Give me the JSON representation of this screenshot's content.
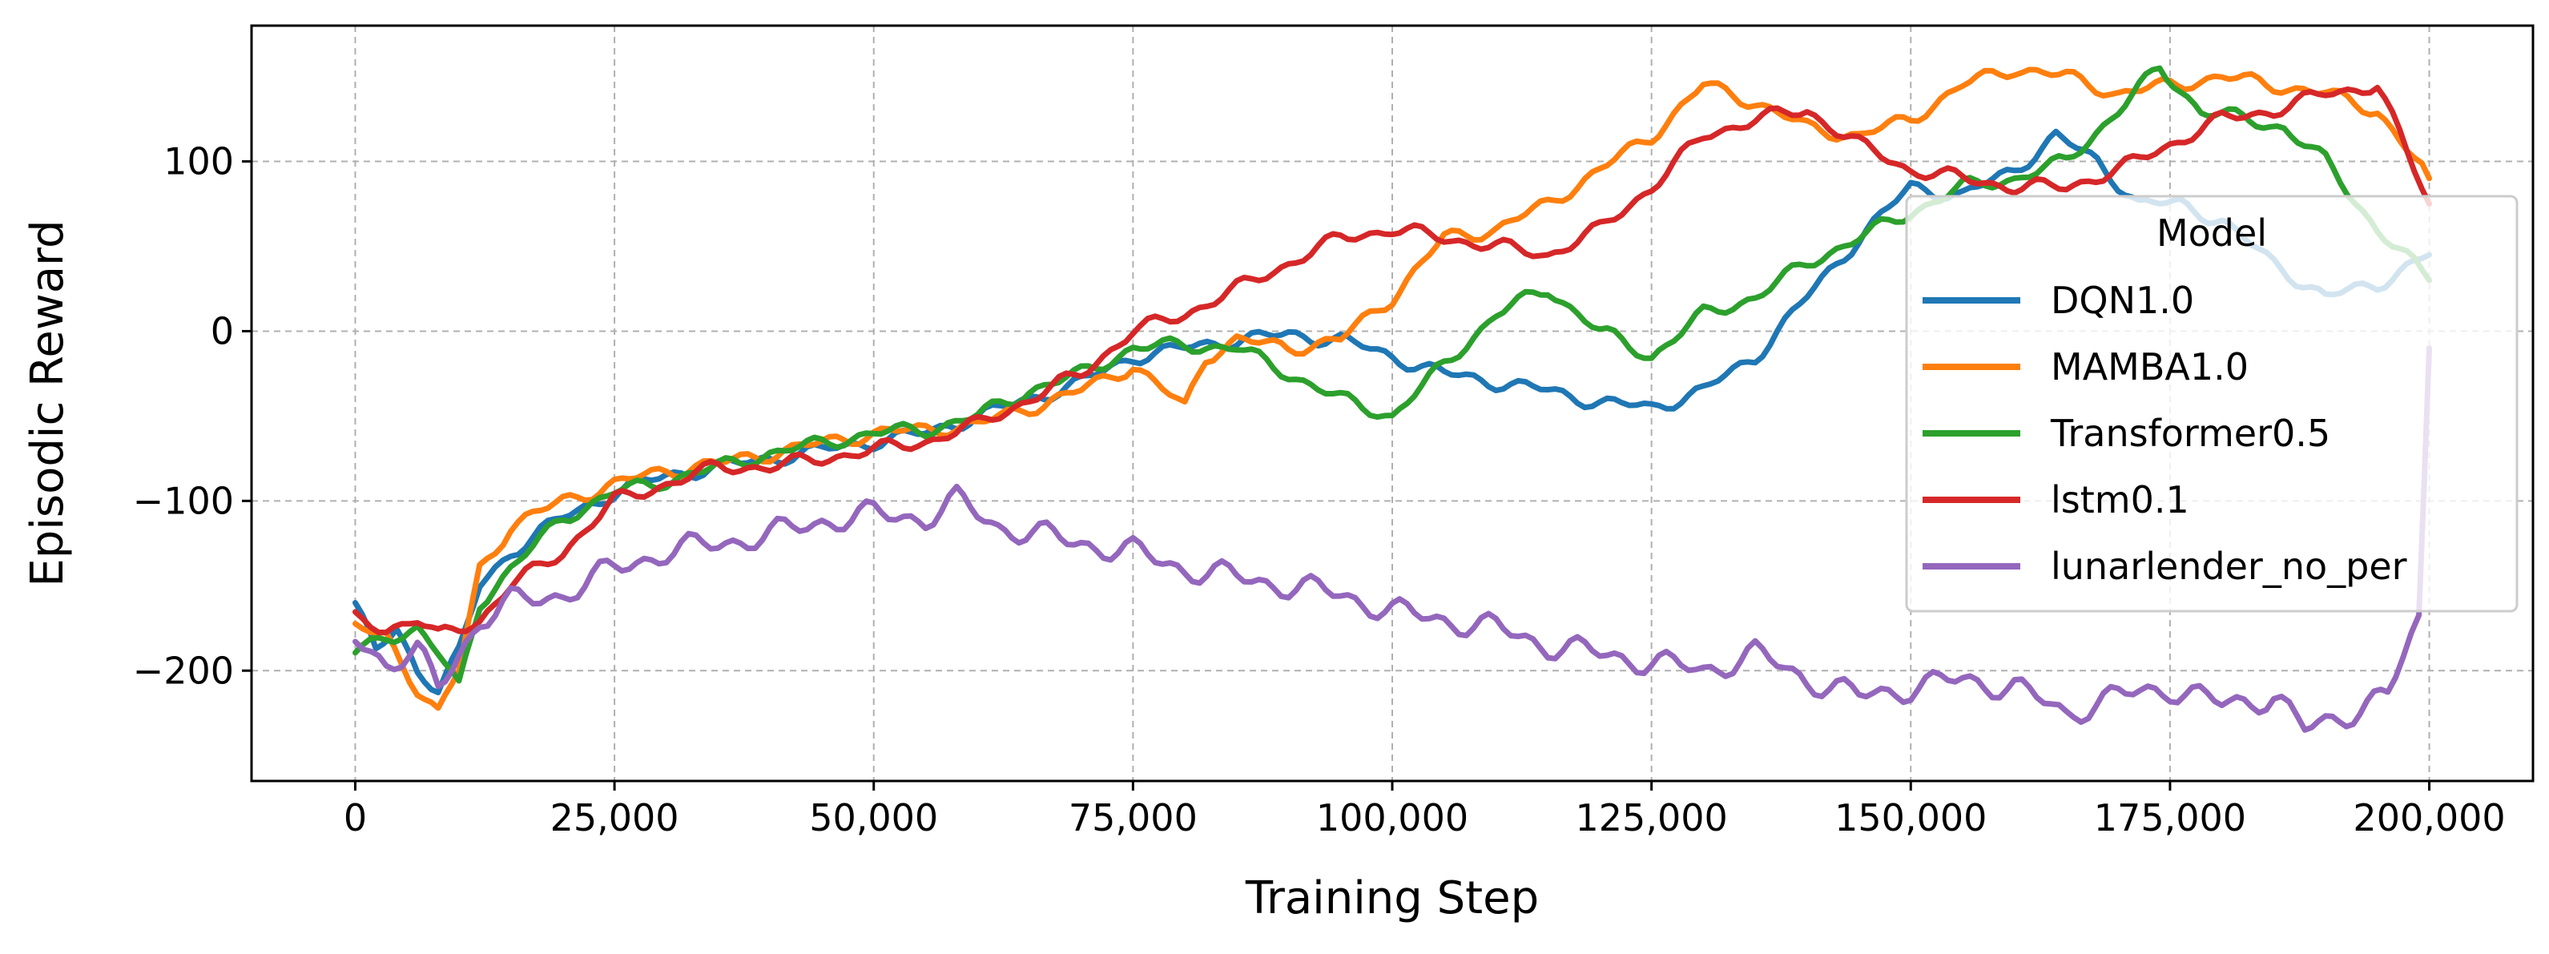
{
  "chart_data": {
    "type": "line",
    "xlabel": "Training Step",
    "ylabel": "Episodic Reward",
    "xlim": [
      -10000,
      210000
    ],
    "ylim": [
      -265,
      180
    ],
    "xticks": [
      0,
      25000,
      50000,
      75000,
      100000,
      125000,
      150000,
      175000,
      200000
    ],
    "xtick_labels": [
      "0",
      "25,000",
      "50,000",
      "75,000",
      "100,000",
      "125,000",
      "150,000",
      "175,000",
      "200,000"
    ],
    "yticks": [
      -200,
      -100,
      0,
      100
    ],
    "ytick_labels": [
      "−200",
      "−100",
      "0",
      "100"
    ],
    "grid": true,
    "legend": {
      "title": "Model",
      "placement": "center-right"
    },
    "series": [
      {
        "name": "DQN1.0",
        "color": "#1f77b4",
        "points": [
          [
            0,
            -160
          ],
          [
            2000,
            -190
          ],
          [
            4000,
            -175
          ],
          [
            6000,
            -200
          ],
          [
            8000,
            -210
          ],
          [
            10000,
            -190
          ],
          [
            12000,
            -150
          ],
          [
            15000,
            -130
          ],
          [
            20000,
            -110
          ],
          [
            25000,
            -95
          ],
          [
            30000,
            -85
          ],
          [
            35000,
            -80
          ],
          [
            40000,
            -75
          ],
          [
            45000,
            -70
          ],
          [
            50000,
            -65
          ],
          [
            55000,
            -60
          ],
          [
            60000,
            -50
          ],
          [
            65000,
            -40
          ],
          [
            70000,
            -30
          ],
          [
            75000,
            -15
          ],
          [
            80000,
            -10
          ],
          [
            85000,
            -5
          ],
          [
            90000,
            -2
          ],
          [
            95000,
            -5
          ],
          [
            100000,
            -15
          ],
          [
            105000,
            -25
          ],
          [
            110000,
            -30
          ],
          [
            115000,
            -35
          ],
          [
            120000,
            -42
          ],
          [
            125000,
            -45
          ],
          [
            130000,
            -35
          ],
          [
            135000,
            -15
          ],
          [
            140000,
            20
          ],
          [
            145000,
            55
          ],
          [
            150000,
            85
          ],
          [
            155000,
            80
          ],
          [
            160000,
            95
          ],
          [
            164000,
            115
          ],
          [
            168000,
            100
          ],
          [
            172000,
            75
          ],
          [
            176000,
            75
          ],
          [
            180000,
            65
          ],
          [
            185000,
            40
          ],
          [
            190000,
            20
          ],
          [
            195000,
            28
          ],
          [
            200000,
            45
          ]
        ]
      },
      {
        "name": "MAMBA1.0",
        "color": "#ff7f0e",
        "points": [
          [
            0,
            -175
          ],
          [
            3000,
            -180
          ],
          [
            6000,
            -210
          ],
          [
            8000,
            -225
          ],
          [
            10000,
            -200
          ],
          [
            12000,
            -140
          ],
          [
            15000,
            -115
          ],
          [
            20000,
            -100
          ],
          [
            25000,
            -90
          ],
          [
            30000,
            -82
          ],
          [
            35000,
            -78
          ],
          [
            40000,
            -72
          ],
          [
            45000,
            -66
          ],
          [
            50000,
            -60
          ],
          [
            55000,
            -58
          ],
          [
            60000,
            -55
          ],
          [
            65000,
            -45
          ],
          [
            70000,
            -35
          ],
          [
            75000,
            -20
          ],
          [
            80000,
            -45
          ],
          [
            82000,
            -15
          ],
          [
            85000,
            -5
          ],
          [
            90000,
            -10
          ],
          [
            95000,
            -5
          ],
          [
            100000,
            20
          ],
          [
            105000,
            55
          ],
          [
            110000,
            60
          ],
          [
            115000,
            75
          ],
          [
            120000,
            95
          ],
          [
            125000,
            115
          ],
          [
            130000,
            145
          ],
          [
            135000,
            135
          ],
          [
            140000,
            120
          ],
          [
            145000,
            115
          ],
          [
            150000,
            125
          ],
          [
            155000,
            145
          ],
          [
            160000,
            155
          ],
          [
            165000,
            150
          ],
          [
            170000,
            140
          ],
          [
            175000,
            145
          ],
          [
            180000,
            150
          ],
          [
            185000,
            145
          ],
          [
            190000,
            140
          ],
          [
            195000,
            130
          ],
          [
            200000,
            90
          ]
        ]
      },
      {
        "name": "Transformer0.5",
        "color": "#2ca02c",
        "points": [
          [
            0,
            -190
          ],
          [
            3000,
            -180
          ],
          [
            6000,
            -175
          ],
          [
            8000,
            -190
          ],
          [
            10000,
            -210
          ],
          [
            12000,
            -160
          ],
          [
            15000,
            -140
          ],
          [
            20000,
            -110
          ],
          [
            25000,
            -95
          ],
          [
            30000,
            -88
          ],
          [
            35000,
            -80
          ],
          [
            40000,
            -72
          ],
          [
            45000,
            -66
          ],
          [
            50000,
            -60
          ],
          [
            55000,
            -58
          ],
          [
            60000,
            -50
          ],
          [
            65000,
            -35
          ],
          [
            70000,
            -25
          ],
          [
            75000,
            -10
          ],
          [
            80000,
            -8
          ],
          [
            85000,
            -10
          ],
          [
            90000,
            -25
          ],
          [
            95000,
            -40
          ],
          [
            100000,
            -50
          ],
          [
            105000,
            -20
          ],
          [
            110000,
            10
          ],
          [
            115000,
            25
          ],
          [
            120000,
            0
          ],
          [
            125000,
            -15
          ],
          [
            130000,
            10
          ],
          [
            135000,
            20
          ],
          [
            140000,
            40
          ],
          [
            145000,
            55
          ],
          [
            150000,
            70
          ],
          [
            155000,
            85
          ],
          [
            160000,
            90
          ],
          [
            165000,
            100
          ],
          [
            170000,
            130
          ],
          [
            174000,
            155
          ],
          [
            178000,
            130
          ],
          [
            182000,
            125
          ],
          [
            186000,
            120
          ],
          [
            190000,
            100
          ],
          [
            195000,
            60
          ],
          [
            200000,
            30
          ]
        ]
      },
      {
        "name": "lstm0.1",
        "color": "#d62728",
        "points": [
          [
            0,
            -170
          ],
          [
            3000,
            -175
          ],
          [
            6000,
            -170
          ],
          [
            8000,
            -180
          ],
          [
            10000,
            -175
          ],
          [
            12000,
            -170
          ],
          [
            15000,
            -150
          ],
          [
            20000,
            -130
          ],
          [
            25000,
            -100
          ],
          [
            30000,
            -90
          ],
          [
            35000,
            -80
          ],
          [
            40000,
            -80
          ],
          [
            45000,
            -75
          ],
          [
            50000,
            -70
          ],
          [
            55000,
            -65
          ],
          [
            60000,
            -55
          ],
          [
            65000,
            -40
          ],
          [
            70000,
            -25
          ],
          [
            75000,
            0
          ],
          [
            80000,
            10
          ],
          [
            85000,
            25
          ],
          [
            90000,
            40
          ],
          [
            95000,
            55
          ],
          [
            100000,
            60
          ],
          [
            105000,
            55
          ],
          [
            110000,
            50
          ],
          [
            115000,
            45
          ],
          [
            120000,
            60
          ],
          [
            125000,
            85
          ],
          [
            130000,
            115
          ],
          [
            135000,
            125
          ],
          [
            140000,
            130
          ],
          [
            145000,
            110
          ],
          [
            150000,
            95
          ],
          [
            155000,
            90
          ],
          [
            160000,
            85
          ],
          [
            165000,
            85
          ],
          [
            170000,
            95
          ],
          [
            175000,
            110
          ],
          [
            180000,
            125
          ],
          [
            185000,
            130
          ],
          [
            190000,
            140
          ],
          [
            195000,
            145
          ],
          [
            200000,
            75
          ]
        ]
      },
      {
        "name": "lunarlender_no_per",
        "color": "#9467bd",
        "points": [
          [
            0,
            -180
          ],
          [
            3000,
            -195
          ],
          [
            6000,
            -190
          ],
          [
            8000,
            -210
          ],
          [
            10000,
            -190
          ],
          [
            12000,
            -170
          ],
          [
            15000,
            -160
          ],
          [
            20000,
            -155
          ],
          [
            25000,
            -140
          ],
          [
            30000,
            -130
          ],
          [
            35000,
            -125
          ],
          [
            40000,
            -120
          ],
          [
            45000,
            -112
          ],
          [
            50000,
            -108
          ],
          [
            55000,
            -110
          ],
          [
            58000,
            -100
          ],
          [
            62000,
            -115
          ],
          [
            66000,
            -120
          ],
          [
            70000,
            -125
          ],
          [
            75000,
            -130
          ],
          [
            80000,
            -140
          ],
          [
            85000,
            -145
          ],
          [
            90000,
            -150
          ],
          [
            95000,
            -155
          ],
          [
            100000,
            -165
          ],
          [
            105000,
            -170
          ],
          [
            110000,
            -175
          ],
          [
            115000,
            -185
          ],
          [
            120000,
            -190
          ],
          [
            125000,
            -195
          ],
          [
            130000,
            -200
          ],
          [
            135000,
            -190
          ],
          [
            140000,
            -205
          ],
          [
            145000,
            -215
          ],
          [
            150000,
            -210
          ],
          [
            155000,
            -205
          ],
          [
            160000,
            -210
          ],
          [
            165000,
            -225
          ],
          [
            170000,
            -215
          ],
          [
            175000,
            -210
          ],
          [
            180000,
            -220
          ],
          [
            185000,
            -215
          ],
          [
            188000,
            -235
          ],
          [
            192000,
            -225
          ],
          [
            196000,
            -215
          ],
          [
            199000,
            -170
          ],
          [
            200000,
            -10
          ]
        ]
      }
    ]
  }
}
